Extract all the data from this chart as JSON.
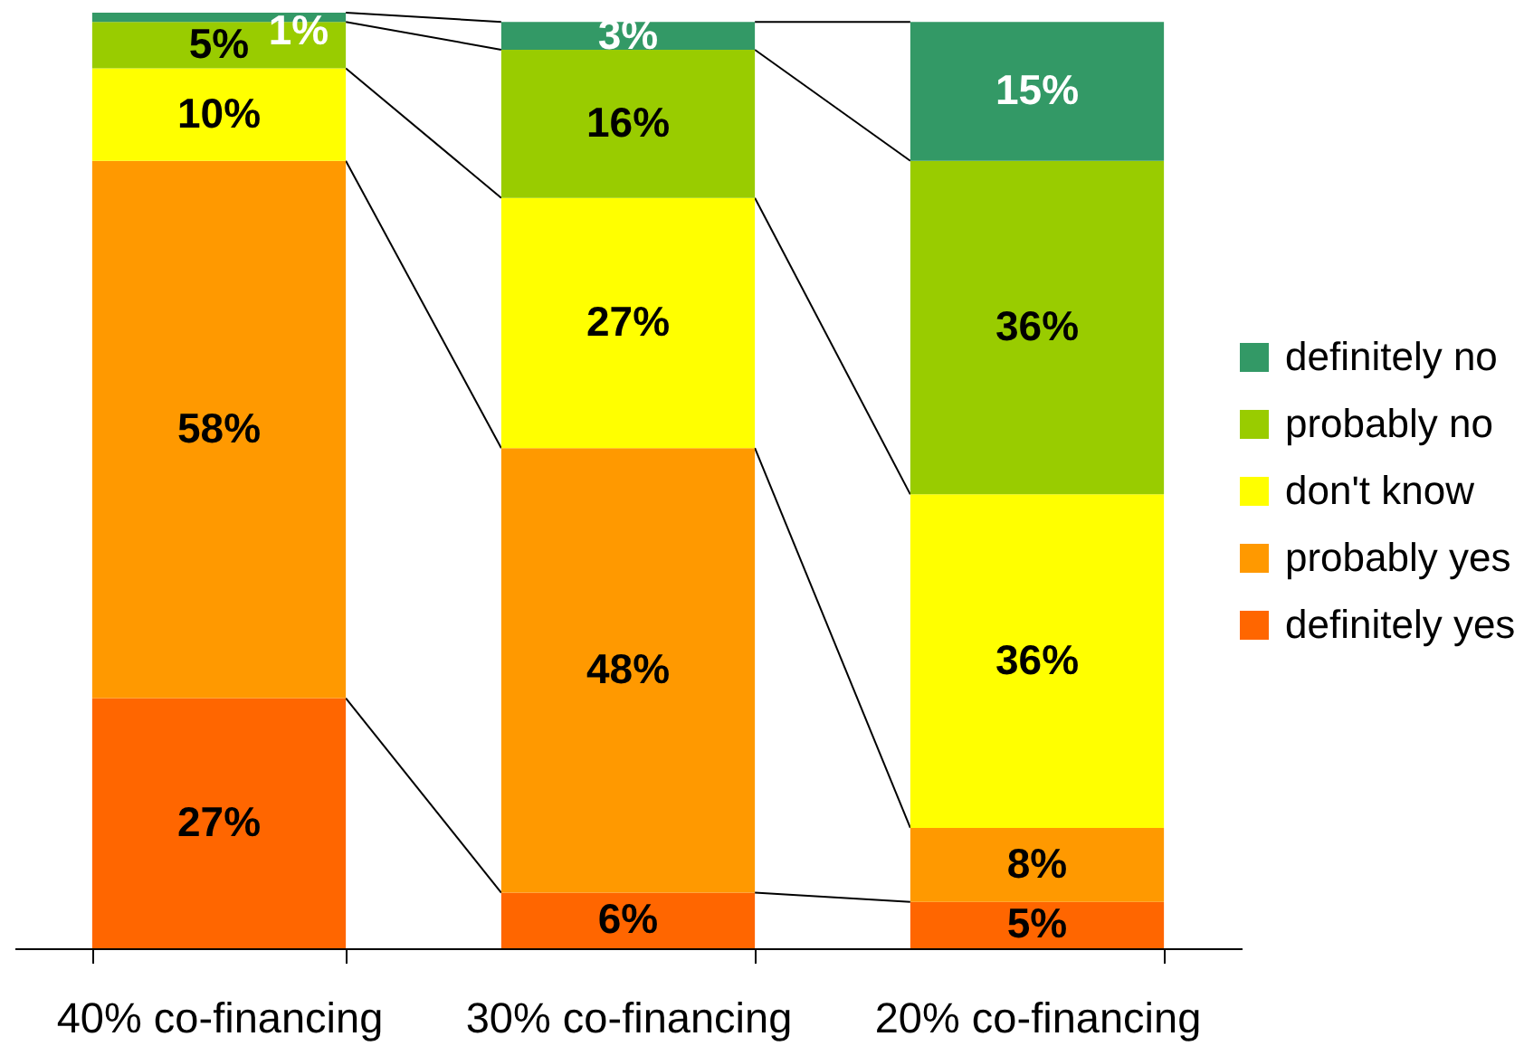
{
  "chart_data": {
    "type": "bar",
    "stacked": true,
    "categories": [
      "40% co-financing",
      "30% co-financing",
      "20% co-financing"
    ],
    "series": [
      {
        "name": "definitely yes",
        "color": "#ff6600",
        "values": [
          27,
          6,
          5
        ],
        "value_labels": [
          "27%",
          "6%",
          "5%"
        ]
      },
      {
        "name": "probably yes",
        "color": "#ff9900",
        "values": [
          58,
          48,
          8
        ],
        "value_labels": [
          "58%",
          "48%",
          "8%"
        ]
      },
      {
        "name": "don't know",
        "color": "#ffff00",
        "values": [
          10,
          27,
          36
        ],
        "value_labels": [
          "10%",
          "27%",
          "36%"
        ]
      },
      {
        "name": "probably no",
        "color": "#99cc00",
        "values": [
          5,
          16,
          36
        ],
        "value_labels": [
          "5%",
          "16%",
          "36%"
        ]
      },
      {
        "name": "definitely no",
        "color": "#339966",
        "values": [
          1,
          3,
          15
        ],
        "value_labels": [
          "1%",
          "3%",
          "15%"
        ]
      }
    ],
    "legend": "right",
    "tick_labels": "x"
  }
}
